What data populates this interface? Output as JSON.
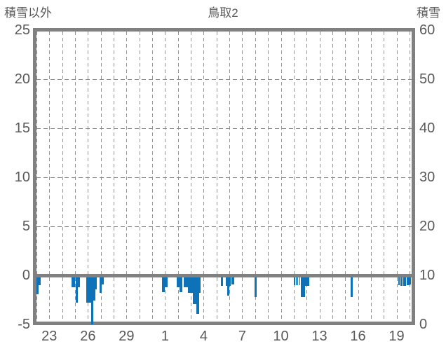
{
  "header": {
    "left_axis_title": "積雪以外",
    "title": "鳥取2",
    "right_axis_title": "積雪"
  },
  "colors": {
    "bar": "#0e72b8",
    "frame": "#808080",
    "grid": "#949494",
    "text": "#595959",
    "background": "#ffffff"
  },
  "chart_data": {
    "type": "bar",
    "title": "鳥取2",
    "left_axis": {
      "label": "積雪以外",
      "ticks": [
        25,
        20,
        15,
        10,
        5,
        0,
        -5
      ],
      "range": [
        -5,
        25
      ],
      "units_per_gridline": 5
    },
    "right_axis": {
      "label": "積雪",
      "ticks": [
        60,
        50,
        40,
        30,
        20,
        10,
        0
      ],
      "range": [
        0,
        60
      ]
    },
    "x_axis": {
      "tick_labels": [
        "23",
        "26",
        "29",
        "1",
        "4",
        "7",
        "10",
        "13",
        "16",
        "19"
      ],
      "tick_day_indices": [
        1,
        4,
        7,
        10,
        13,
        16,
        19,
        22,
        25,
        28
      ],
      "daily_gridline_count": 30
    },
    "grid": true,
    "zero_line_value": 0,
    "legend_position": "none",
    "series": [
      {
        "name": "積雪以外",
        "axis": "left",
        "type": "bar",
        "bars": [
          [
            0.0,
            0.164,
            -1.9
          ],
          [
            0.16,
            0.164,
            -1.0
          ],
          [
            2.73,
            0.273,
            -1.2
          ],
          [
            3.05,
            0.164,
            -2.8
          ],
          [
            3.22,
            0.164,
            -1.2
          ],
          [
            3.87,
            0.382,
            -2.8
          ],
          [
            4.25,
            0.164,
            -5.0
          ],
          [
            4.42,
            0.164,
            -2.6
          ],
          [
            4.58,
            0.109,
            -1.4
          ],
          [
            4.91,
            0.164,
            -1.8
          ],
          [
            5.07,
            0.164,
            -0.9
          ],
          [
            9.76,
            0.218,
            -1.7
          ],
          [
            9.98,
            0.218,
            -1.2
          ],
          [
            10.91,
            0.218,
            -1.2
          ],
          [
            11.12,
            0.218,
            -1.7
          ],
          [
            11.45,
            0.327,
            -1.2
          ],
          [
            11.78,
            0.382,
            -1.8
          ],
          [
            12.16,
            0.273,
            -2.9
          ],
          [
            12.43,
            0.218,
            -3.9
          ],
          [
            12.65,
            0.109,
            -1.8
          ],
          [
            14.34,
            0.164,
            -1.1
          ],
          [
            14.72,
            0.109,
            -1.1
          ],
          [
            14.83,
            0.164,
            -2.1
          ],
          [
            15.0,
            0.109,
            -1.1
          ],
          [
            15.16,
            0.218,
            -0.9
          ],
          [
            16.96,
            0.164,
            -2.2
          ],
          [
            20.01,
            0.082,
            -1.0
          ],
          [
            20.15,
            0.082,
            -1.0
          ],
          [
            20.28,
            0.082,
            -1.0
          ],
          [
            20.42,
            0.082,
            -1.0
          ],
          [
            20.56,
            0.327,
            -2.2
          ],
          [
            20.88,
            0.327,
            -1.1
          ],
          [
            24.43,
            0.164,
            -2.2
          ],
          [
            28.14,
            0.109,
            -1.0
          ],
          [
            28.3,
            0.164,
            -1.1
          ],
          [
            28.52,
            0.218,
            -1.1
          ],
          [
            28.79,
            0.218,
            -1.0
          ],
          [
            29.01,
            0.109,
            -0.9
          ]
        ]
      },
      {
        "name": "積雪",
        "axis": "right",
        "type": "bar",
        "bars": []
      }
    ]
  }
}
